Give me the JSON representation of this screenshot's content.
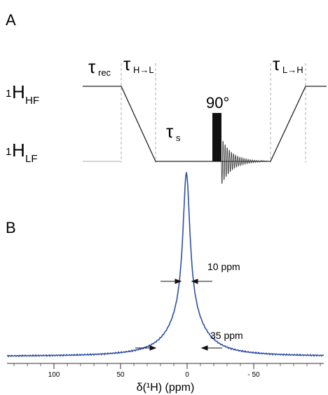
{
  "panel_a": {
    "label": "A",
    "level_hf": {
      "base": "H",
      "sup": "1",
      "sub": "HF"
    },
    "level_lf": {
      "base": "H",
      "sup": "1",
      "sub": "LF"
    },
    "tau_rec": {
      "base": "τ",
      "sub": "rec"
    },
    "tau_hl": {
      "base": "τ",
      "sub": "H→L"
    },
    "tau_s": {
      "base": "τ",
      "sub": "s"
    },
    "tau_lh": {
      "base": "τ",
      "sub": "L→H"
    },
    "pulse_label": "90°"
  },
  "panel_b": {
    "label": "B",
    "annotation_narrow": "10 ppm",
    "annotation_wide": "35 ppm",
    "axis_title": "δ(¹H) (ppm)",
    "ticks": [
      "100",
      "50",
      "0",
      "- 50"
    ],
    "line_color": "#2d4fa3"
  }
}
